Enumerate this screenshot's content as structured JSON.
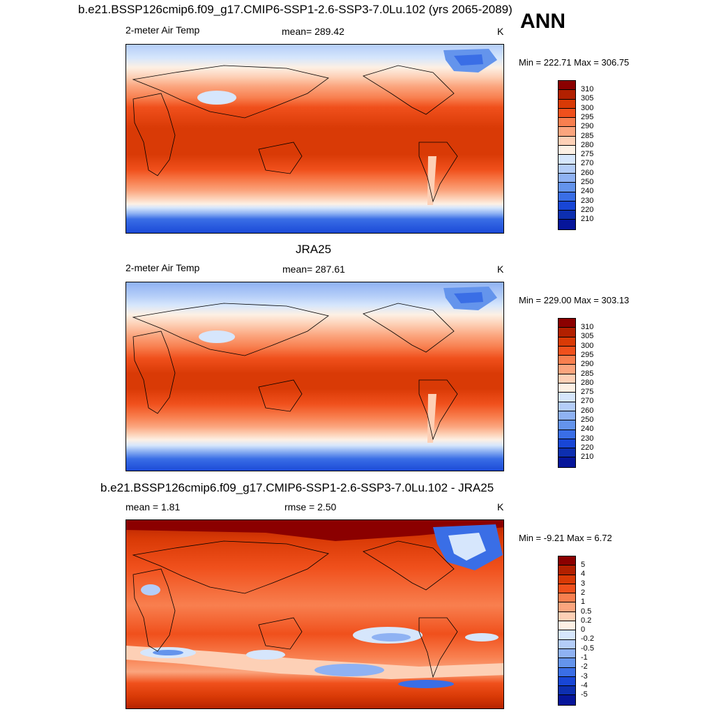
{
  "season": "ANN",
  "panels": [
    {
      "title": "b.e21.BSSP126cmip6.f09_g17.CMIP6-SSP1-2.6-SSP3-7.0Lu.102 (yrs 2065-2089)",
      "left_label": "2-meter Air Temp",
      "center_label": "mean= 289.42",
      "units": "K",
      "minmax": "Min = 222.71 Max = 306.75",
      "colorbar": {
        "levels": [
          "310",
          "305",
          "300",
          "295",
          "290",
          "285",
          "280",
          "275",
          "270",
          "260",
          "250",
          "240",
          "230",
          "220",
          "210"
        ],
        "colors": [
          "#8b0000",
          "#b22000",
          "#d93a06",
          "#f0501c",
          "#f87f4f",
          "#fba57e",
          "#fdd0b6",
          "#fdf0e4",
          "#d6e6fc",
          "#b4cdf8",
          "#8fb2f3",
          "#6494ec",
          "#3a6ee6",
          "#1846d6",
          "#0d2fb0",
          "#06159a"
        ]
      }
    },
    {
      "title": "JRA25",
      "left_label": "2-meter Air Temp",
      "center_label": "mean= 287.61",
      "units": "K",
      "minmax": "Min = 229.00 Max = 303.13",
      "colorbar": {
        "levels": [
          "310",
          "305",
          "300",
          "295",
          "290",
          "285",
          "280",
          "275",
          "270",
          "260",
          "250",
          "240",
          "230",
          "220",
          "210"
        ],
        "colors": [
          "#8b0000",
          "#b22000",
          "#d93a06",
          "#f0501c",
          "#f87f4f",
          "#fba57e",
          "#fdd0b6",
          "#fdf0e4",
          "#d6e6fc",
          "#b4cdf8",
          "#8fb2f3",
          "#6494ec",
          "#3a6ee6",
          "#1846d6",
          "#0d2fb0",
          "#06159a"
        ]
      }
    },
    {
      "title": "b.e21.BSSP126cmip6.f09_g17.CMIP6-SSP1-2.6-SSP3-7.0Lu.102 - JRA25",
      "left_label": "mean =   1.81",
      "center_label": "rmse =   2.50",
      "units": "K",
      "minmax": "Min =  -9.21 Max =   6.72",
      "colorbar": {
        "levels": [
          "5",
          "4",
          "3",
          "2",
          "1",
          "0.5",
          "0.2",
          "0",
          "-0.2",
          "-0.5",
          "-1",
          "-2",
          "-3",
          "-4",
          "-5"
        ],
        "colors": [
          "#8b0000",
          "#b22000",
          "#d93a06",
          "#f0501c",
          "#f87f4f",
          "#fba57e",
          "#fdd0b6",
          "#fdf0e4",
          "#d6e6fc",
          "#b4cdf8",
          "#8fb2f3",
          "#6494ec",
          "#3a6ee6",
          "#1846d6",
          "#0d2fb0",
          "#06159a"
        ]
      }
    }
  ]
}
